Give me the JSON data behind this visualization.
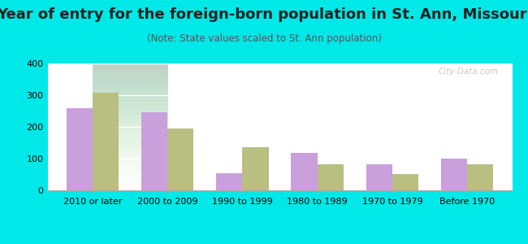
{
  "title": "Year of entry for the foreign-born population in St. Ann, Missouri",
  "subtitle": "(Note: State values scaled to St. Ann population)",
  "categories": [
    "2010 or later",
    "2000 to 2009",
    "1990 to 1999",
    "1980 to 1989",
    "1970 to 1979",
    "Before 1970"
  ],
  "st_ann_values": [
    258,
    246,
    55,
    118,
    83,
    99
  ],
  "missouri_values": [
    307,
    194,
    135,
    82,
    52,
    81
  ],
  "st_ann_color": "#c9a0dc",
  "missouri_color": "#b8bf80",
  "background_outer": "#00e8e8",
  "ylim": [
    0,
    400
  ],
  "yticks": [
    0,
    100,
    200,
    300,
    400
  ],
  "bar_width": 0.35,
  "title_fontsize": 13,
  "subtitle_fontsize": 8.5,
  "tick_fontsize": 8,
  "legend_fontsize": 9.5,
  "watermark": "City-Data.com"
}
